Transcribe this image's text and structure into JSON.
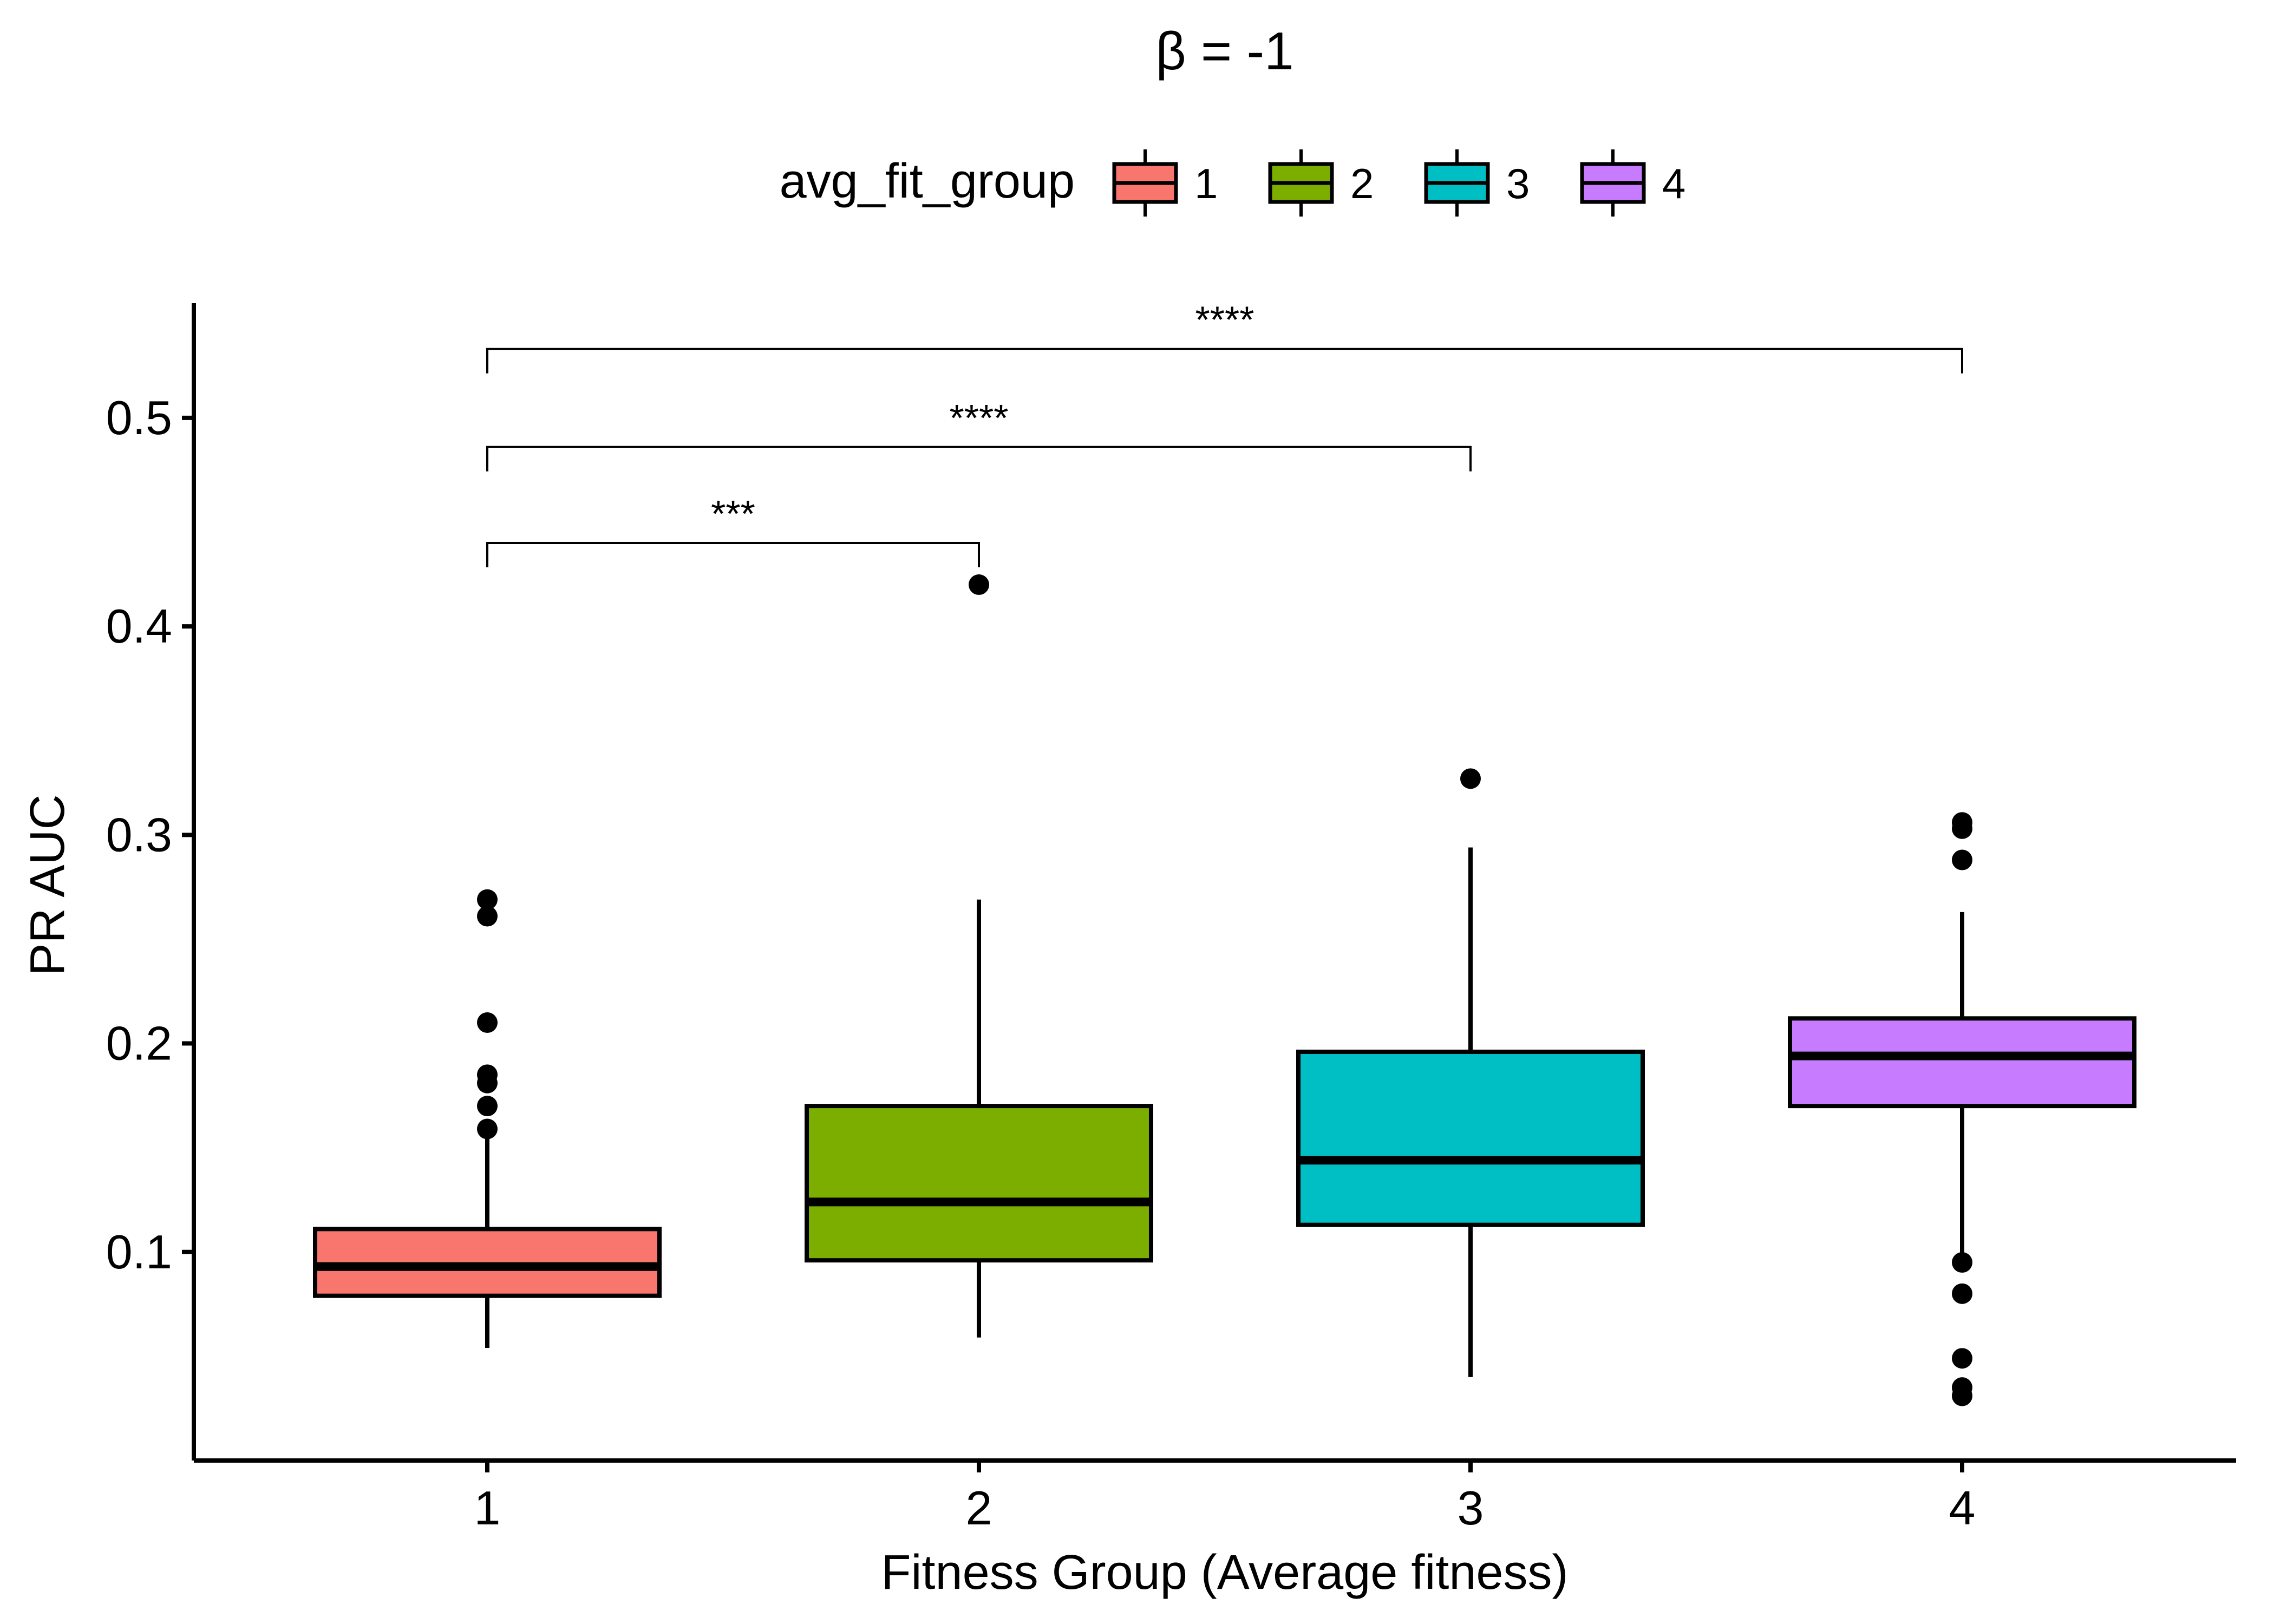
{
  "chart_data": {
    "type": "box",
    "title": "β = -1",
    "xlabel": "Fitness Group (Average fitness)",
    "ylabel": "PR AUC",
    "categories": [
      "1",
      "2",
      "3",
      "4"
    ],
    "ylim": [
      0.0,
      0.555
    ],
    "yticks": [
      0.1,
      0.2,
      0.3,
      0.4,
      0.5
    ],
    "ytick_labels": [
      "0.1",
      "0.2",
      "0.3",
      "0.4",
      "0.5"
    ],
    "grid": false,
    "legend": {
      "title": "avg_fit_group",
      "position": "top",
      "entries": [
        "1",
        "2",
        "3",
        "4"
      ]
    },
    "series": [
      {
        "group": "1",
        "color": "#F8766D",
        "whisker_low": 0.054,
        "q1": 0.079,
        "median": 0.093,
        "q3": 0.111,
        "whisker_high": 0.158,
        "outliers": [
          0.159,
          0.17,
          0.181,
          0.185,
          0.21,
          0.261,
          0.269
        ]
      },
      {
        "group": "2",
        "color": "#7CAE00",
        "whisker_low": 0.059,
        "q1": 0.096,
        "median": 0.124,
        "q3": 0.17,
        "whisker_high": 0.269,
        "outliers": [
          0.42
        ]
      },
      {
        "group": "3",
        "color": "#00BFC4",
        "whisker_low": 0.04,
        "q1": 0.113,
        "median": 0.144,
        "q3": 0.196,
        "whisker_high": 0.294,
        "outliers": [
          0.327
        ]
      },
      {
        "group": "4",
        "color": "#C77CFF",
        "whisker_low": 0.097,
        "q1": 0.17,
        "median": 0.194,
        "q3": 0.212,
        "whisker_high": 0.263,
        "outliers": [
          0.031,
          0.035,
          0.049,
          0.08,
          0.095,
          0.288,
          0.303,
          0.306
        ]
      }
    ],
    "comparisons": [
      {
        "from": "1",
        "to": "2",
        "y": 0.44,
        "label": "***"
      },
      {
        "from": "1",
        "to": "3",
        "y": 0.486,
        "label": "****"
      },
      {
        "from": "1",
        "to": "4",
        "y": 0.533,
        "label": "****"
      }
    ]
  }
}
